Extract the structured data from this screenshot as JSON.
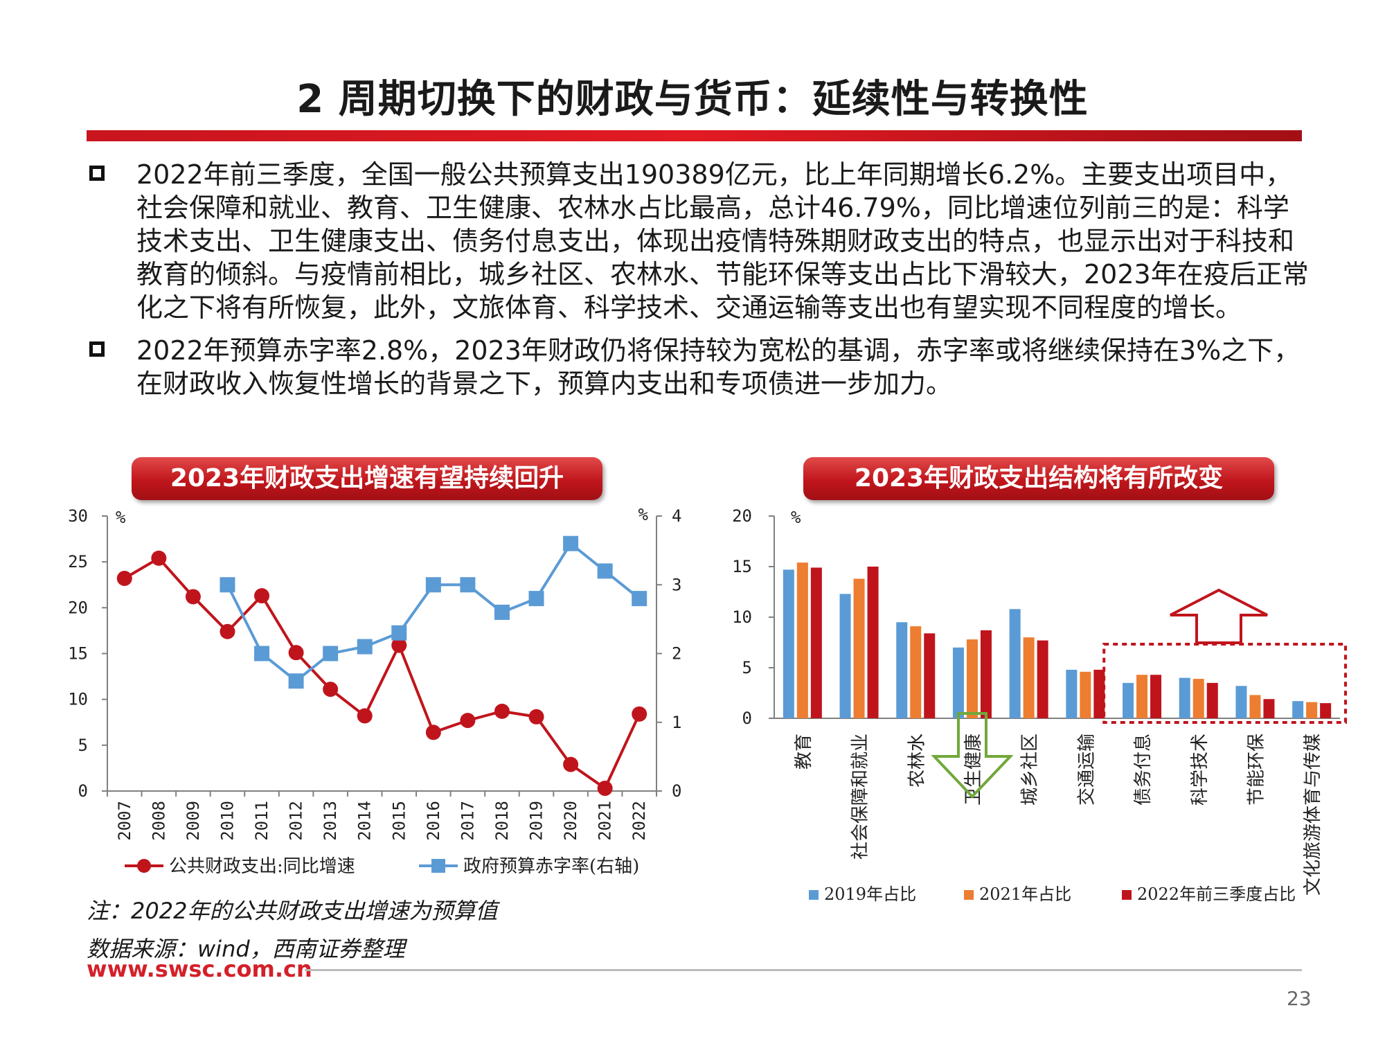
{
  "title": "2 周期切换下的财政与货币：延续性与转换性",
  "bullets": [
    "2022年前三季度，全国一般公共预算支出190389亿元，比上年同期增长6.2%。主要支出项目中，社会保障和就业、教育、卫生健康、农林水占比最高，总计46.79%，同比增速位列前三的是：科学技术支出、卫生健康支出、债务付息支出，体现出疫情特殊期财政支出的特点，也显示出对于科技和教育的倾斜。与疫情前相比，城乡社区、农林水、节能环保等支出占比下滑较大，2023年在疫后正常化之下将有所恢复，此外，文旅体育、科学技术、交通运输等支出也有望实现不同程度的增长。",
    "2022年预算赤字率2.8%，2023年财政仍将保持较为宽松的基调，赤字率或将继续保持在3%之下，在财政收入恢复性增长的背景之下，预算内支出和专项债进一步加力。"
  ],
  "left_panel_title": "2023年财政支出增速有望持续回升",
  "right_panel_title": "2023年财政支出结构将有所改变",
  "note": "注：2022年的公共财政支出增速为预算值",
  "source": "数据来源：wind，西南证券整理",
  "website": "www.swsc.com.cn",
  "page_number": "23",
  "colors": {
    "red": "#c0141c",
    "blue": "#5b9bd5",
    "orange": "#ed7d31",
    "green": "#70a83a"
  },
  "chart_data": [
    {
      "type": "line",
      "x": [
        "2007",
        "2008",
        "2009",
        "2010",
        "2011",
        "2012",
        "2013",
        "2014",
        "2015",
        "2016",
        "2017",
        "2018",
        "2019",
        "2020",
        "2021",
        "2022"
      ],
      "series": [
        {
          "name": "公共财政支出:同比增速",
          "axis": "left",
          "color": "#c0141c",
          "marker": "circle",
          "values": [
            23.2,
            25.4,
            21.2,
            17.4,
            21.3,
            15.1,
            11.1,
            8.2,
            15.9,
            6.4,
            7.7,
            8.7,
            8.1,
            2.9,
            0.3,
            8.4
          ]
        },
        {
          "name": "政府预算赤字率(右轴)",
          "axis": "right",
          "color": "#5b9bd5",
          "marker": "square",
          "values": [
            null,
            null,
            null,
            3.0,
            2.0,
            1.6,
            2.0,
            2.1,
            2.3,
            3.0,
            3.0,
            2.6,
            2.8,
            3.6,
            3.2,
            2.8
          ]
        }
      ],
      "y_left": {
        "unit": "%",
        "ticks": [
          "0",
          "5",
          "10",
          "15",
          "20",
          "25",
          "30"
        ],
        "ylim": [
          0,
          30
        ]
      },
      "y_right": {
        "unit": "%",
        "ticks": [
          "0",
          "1",
          "2",
          "3",
          "4"
        ],
        "ylim": [
          0,
          4
        ]
      },
      "legend_placement": "bottom",
      "grid": false
    },
    {
      "type": "bar",
      "categories": [
        "教育",
        "社会保障和就业",
        "农林水",
        "卫生健康",
        "城乡社区",
        "交通运输",
        "债务付息",
        "科学技术",
        "节能环保",
        "文化旅游体育与传媒"
      ],
      "series": [
        {
          "name": "2019年占比",
          "color": "#5b9bd5",
          "values": [
            14.7,
            12.3,
            9.5,
            7.0,
            10.8,
            4.8,
            3.5,
            4.0,
            3.2,
            1.7
          ]
        },
        {
          "name": "2021年占比",
          "color": "#ed7d31",
          "values": [
            15.4,
            13.8,
            9.1,
            7.8,
            8.0,
            4.6,
            4.3,
            3.9,
            2.3,
            1.6
          ]
        },
        {
          "name": "2022年前三季度占比",
          "color": "#c0141c",
          "values": [
            14.9,
            15.0,
            8.4,
            8.7,
            7.7,
            4.8,
            4.3,
            3.5,
            1.9,
            1.5
          ]
        }
      ],
      "y": {
        "unit": "%",
        "ticks": [
          "0",
          "5",
          "10",
          "15",
          "20"
        ],
        "ylim": [
          0,
          20
        ]
      },
      "legend_placement": "bottom",
      "grid": false
    }
  ]
}
